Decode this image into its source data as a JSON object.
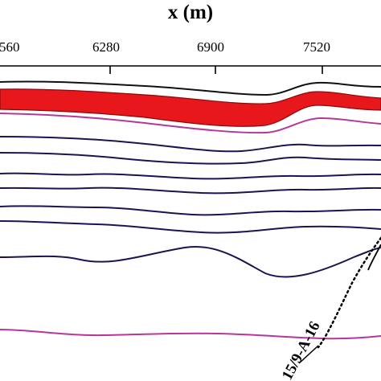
{
  "figure": {
    "axis_title": "x (m)",
    "tick_labels": [
      "560",
      "6280",
      "6900",
      "7520"
    ],
    "well_label": "15/9-A-16"
  },
  "colors": {
    "background": "#ffffff",
    "axis": "#000000",
    "highlight_fill": "#e8171c",
    "horizon_black": "#111111",
    "horizon_navy": "#1a1550",
    "horizon_magenta": "#b6379a",
    "well_trajectory": "#000000"
  },
  "legend": {
    "horizon_count": 10,
    "highlighted_layer": "red band between top horizons"
  }
}
